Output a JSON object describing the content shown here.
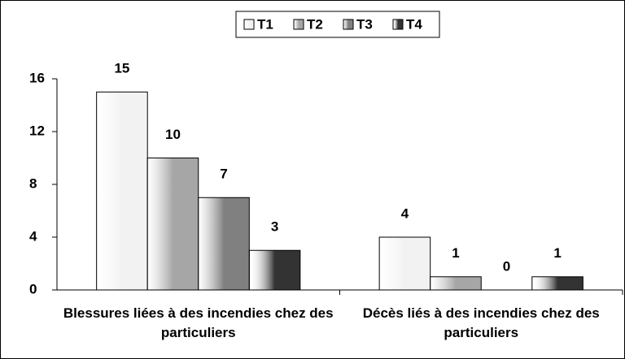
{
  "chart_data": {
    "type": "bar",
    "categories": [
      "Blessures liées à des incendies chez des particuliers",
      "Décès liés à des incendies chez des particuliers"
    ],
    "series": [
      {
        "name": "T1",
        "color": "#f2f2f2",
        "values": [
          15,
          4
        ]
      },
      {
        "name": "T2",
        "color": "#a6a6a6",
        "values": [
          10,
          1
        ]
      },
      {
        "name": "T3",
        "color": "#808080",
        "values": [
          7,
          0
        ]
      },
      {
        "name": "T4",
        "color": "#333333",
        "values": [
          3,
          1
        ]
      }
    ],
    "ylim": [
      0,
      16
    ],
    "yticks": [
      0,
      4,
      8,
      12,
      16
    ],
    "grid": false,
    "legend": "top"
  }
}
